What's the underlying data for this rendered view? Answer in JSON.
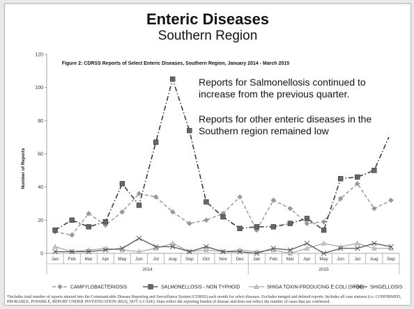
{
  "slide": {
    "title": "Enteric Diseases",
    "subtitle": "Southern Region",
    "callout_1": "Reports for Salmonellosis continued to increase from the previous quarter.",
    "callout_2": "Reports for other enteric diseases in the Southern region remained low",
    "footnote": "*Includes total number of reports entered into the Communicable Disease Reporting and Surveillance System (CDRSS) each month for select diseases. Excludes merged and deleted reports. Includes all case statuses (i.e. CONFIRMED, PROBABLE, POSSIBLE, REPORT UNDER INVESTIGATION (RUI), NOT A CASE). Data reflect the reporting burden of disease and does not reflect the number of cases that are confirmed."
  },
  "chart_data": {
    "type": "line",
    "title": "Figure 2: CDRSS Reports of Select Enteric Diseases, Southern Region, January 2014 - March 2015",
    "ylabel": "Number of Reports",
    "xlabel": "",
    "ylim": [
      0,
      120
    ],
    "yticks": [
      0,
      20,
      40,
      60,
      80,
      100,
      120
    ],
    "categories": [
      "Jan",
      "Feb",
      "Mar",
      "Apr",
      "May",
      "Jun",
      "Jul",
      "Aug",
      "Sep",
      "Oct",
      "Nov",
      "Dec",
      "Jan",
      "Feb",
      "Mar",
      "Apr",
      "May",
      "Jun",
      "Jul",
      "Aug",
      "Sep"
    ],
    "year_groups": [
      {
        "label": "2014",
        "start": 0,
        "end": 11
      },
      {
        "label": "2015",
        "start": 12,
        "end": 20
      }
    ],
    "grid": false,
    "legend_position": "bottom",
    "series": [
      {
        "name": "CAMPYLOBACTERIOSIS",
        "color": "#8c8c8c",
        "dash": "dash",
        "marker": "diamond",
        "values": [
          13,
          11,
          24,
          17,
          25,
          36,
          34,
          25,
          18,
          20,
          24,
          34,
          14,
          32,
          27,
          18,
          19,
          33,
          42,
          27,
          32
        ]
      },
      {
        "name": "SALMONELLOSIS - NON TYPHOID",
        "color": "#3a3a3a",
        "dash": "dashdot",
        "marker": "square",
        "values": [
          14,
          20,
          16,
          19,
          42,
          29,
          67,
          105,
          74,
          31,
          22,
          15,
          16,
          16,
          18,
          21,
          14,
          45,
          46,
          50,
          73
        ]
      },
      {
        "name": "SHIGA TOXIN-PRODUCING E.COLI (STEC)",
        "color": "#a8a8a8",
        "dash": "solid",
        "marker": "triangle",
        "values": [
          4,
          1,
          2,
          3,
          2,
          1,
          3,
          6,
          1,
          2,
          1,
          2,
          1,
          2,
          0,
          3,
          6,
          4,
          6,
          3,
          3
        ]
      },
      {
        "name": "SHIGELLOSIS",
        "color": "#555555",
        "dash": "solid",
        "marker": "x",
        "values": [
          1,
          1,
          1,
          2,
          3,
          9,
          4,
          4,
          1,
          4,
          1,
          1,
          0,
          3,
          2,
          6,
          0,
          3,
          3,
          6,
          4
        ]
      }
    ]
  }
}
